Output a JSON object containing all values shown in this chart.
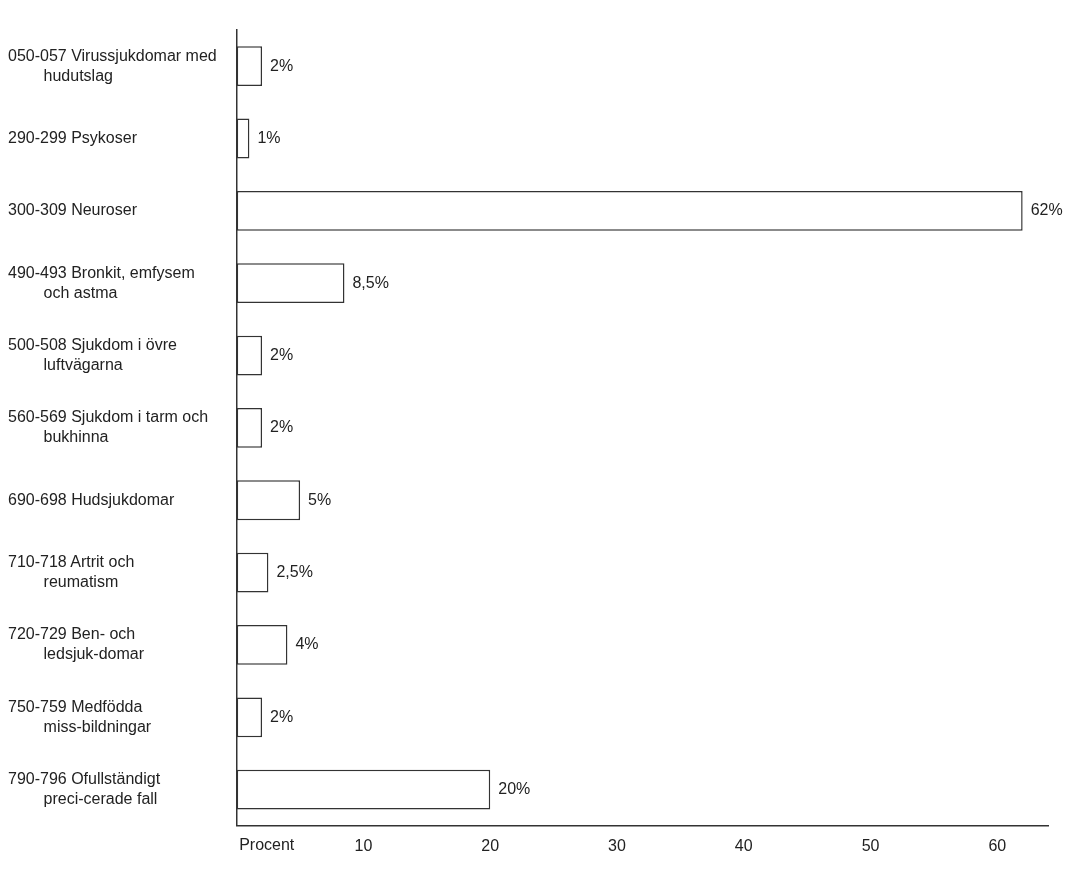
{
  "chart_data": {
    "type": "bar",
    "orientation": "horizontal",
    "xlabel": "Procent",
    "categories": [
      "050-057 Virussjukdomar med hudutslag",
      "290-299 Psykoser",
      "300-309 Neuroser",
      "490-493 Bronkit, emfysem och astma",
      "500-508 Sjukdom i övre luftvägarna",
      "560-569 Sjukdom i tarm och bukhinna",
      "690-698 Hudsjukdomar",
      "710-718 Artrit och reumatism",
      "720-729 Ben- och ledsjuk-domar",
      "750-759 Medfödda miss-bildningar",
      "790-796 Ofullständigt preci-cerade fall"
    ],
    "values": [
      2,
      1,
      62,
      8.5,
      2,
      2,
      5,
      2.5,
      4,
      2,
      20
    ],
    "value_labels": [
      "2%",
      "1%",
      "62%",
      "8,5%",
      "2%",
      "2%",
      "5%",
      "2,5%",
      "4%",
      "2%",
      "20%"
    ],
    "color": "#ffffff",
    "xlim": [
      0,
      64
    ],
    "xticks": [
      10,
      20,
      30,
      40,
      50,
      60
    ],
    "grid": false,
    "legend": false
  }
}
